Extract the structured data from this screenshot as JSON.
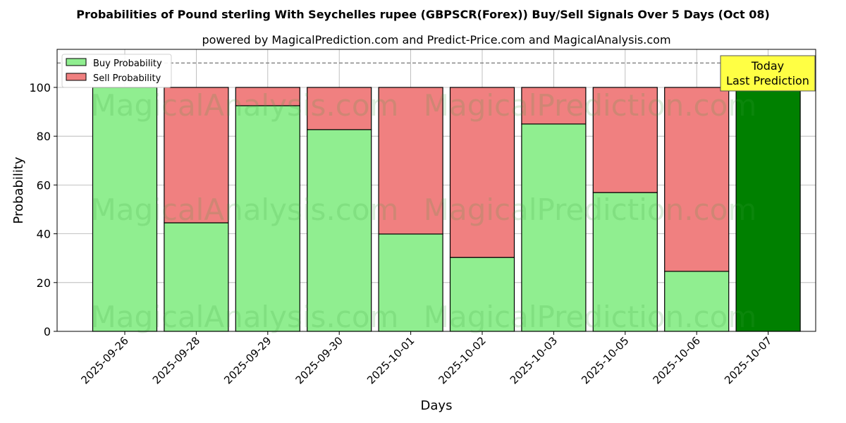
{
  "chart_data": {
    "type": "bar",
    "stacked": true,
    "title": "Probabilities of Pound sterling With Seychelles rupee (GBPSCR(Forex)) Buy/Sell Signals Over 5 Days (Oct 08)",
    "subtitle": "powered by MagicalPrediction.com and Predict-Price.com and MagicalAnalysis.com",
    "xlabel": "Days",
    "ylabel": "Probability",
    "ylim": [
      0,
      115.6
    ],
    "yticks": [
      0,
      20,
      40,
      60,
      80,
      100
    ],
    "categories": [
      "2025-09-26",
      "2025-09-28",
      "2025-09-29",
      "2025-09-30",
      "2025-10-01",
      "2025-10-02",
      "2025-10-03",
      "2025-10-05",
      "2025-10-06",
      "2025-10-07"
    ],
    "series": [
      {
        "name": "Buy Probability",
        "color": "#90ee90",
        "values": [
          100,
          44.5,
          92.5,
          82.7,
          39.9,
          30.3,
          85.0,
          56.9,
          24.6,
          100
        ]
      },
      {
        "name": "Sell Probability",
        "color": "#f08080",
        "values": [
          0,
          55.5,
          7.5,
          17.3,
          60.1,
          69.7,
          15.0,
          43.1,
          75.4,
          0
        ]
      }
    ],
    "highlight_color": "#008000",
    "reference_line": 110,
    "annotation": {
      "line1": "Today",
      "line2": "Last Prediction"
    },
    "legend_position": "top-left",
    "grid": true,
    "watermarks": [
      "MagicalAnalysis.com",
      "MagicalPrediction.com"
    ]
  }
}
